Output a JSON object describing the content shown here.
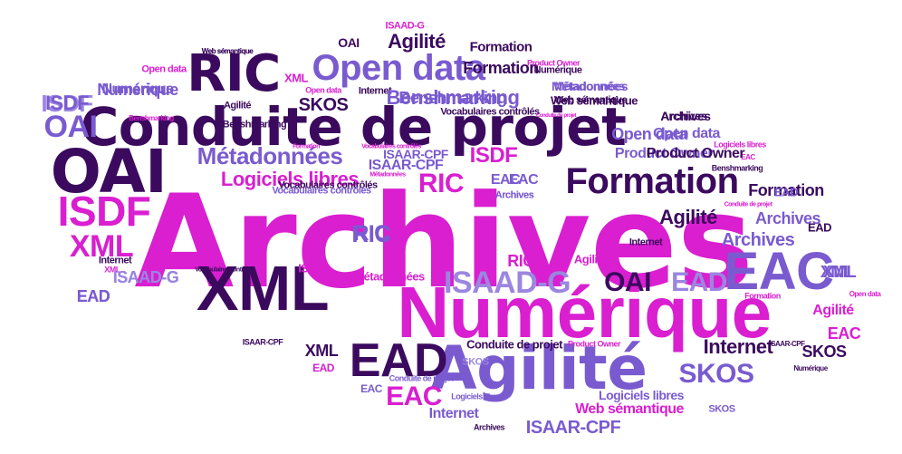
{
  "palette": {
    "magenta": "#d91fd0",
    "dark_purple": "#3b0a5e",
    "medium_purple": "#7a5bcf",
    "light_purple": "#9b86e0"
  },
  "words": [
    {
      "text": "Archives",
      "color": "magenta",
      "size": 142
    },
    {
      "text": "Conduite de projet",
      "color": "dark_purple",
      "size": 58
    },
    {
      "text": "Numérique",
      "color": "magenta",
      "size": 80
    },
    {
      "text": "XML",
      "color": "dark_purple",
      "size": 70
    },
    {
      "text": "Agilité",
      "color": "medium_purple",
      "size": 66
    },
    {
      "text": "OAI",
      "color": "dark_purple",
      "size": 66
    },
    {
      "text": "RIC",
      "color": "dark_purple",
      "size": 56
    },
    {
      "text": "Open data",
      "color": "medium_purple",
      "size": 40
    },
    {
      "text": "Formation",
      "color": "dark_purple",
      "size": 40
    },
    {
      "text": "EAC",
      "color": "medium_purple",
      "size": 58
    },
    {
      "text": "EAD",
      "color": "dark_purple",
      "size": 52
    },
    {
      "text": "ISDF",
      "color": "magenta",
      "size": 46
    },
    {
      "text": "XML",
      "color": "magenta",
      "size": 34
    },
    {
      "text": "ISAAD-G",
      "color": "light_purple",
      "size": 34
    },
    {
      "text": "OAI",
      "color": "dark_purple",
      "size": 30
    },
    {
      "text": "EAD",
      "color": "light_purple",
      "size": 30
    },
    {
      "text": "Métadonnées",
      "color": "medium_purple",
      "size": 26
    },
    {
      "text": "RIC",
      "color": "magenta",
      "size": 30
    },
    {
      "text": "Logiciels libres",
      "color": "magenta",
      "size": 22
    },
    {
      "text": "ISDF",
      "color": "magenta",
      "size": 24
    },
    {
      "text": "SKOS",
      "color": "medium_purple",
      "size": 30
    },
    {
      "text": "Internet",
      "color": "dark_purple",
      "size": 22
    },
    {
      "text": "EAC",
      "color": "magenta",
      "size": 30
    },
    {
      "text": "OAI",
      "color": "medium_purple",
      "size": 34
    },
    {
      "text": "ISDF",
      "color": "light_purple",
      "size": 26
    },
    {
      "text": "RIC",
      "color": "medium_purple",
      "size": 24
    },
    {
      "text": "Benshmarking",
      "color": "medium_purple",
      "size": 18
    },
    {
      "text": "Numérique",
      "color": "medium_purple",
      "size": 16
    },
    {
      "text": "SKOS",
      "color": "dark_purple",
      "size": 20
    },
    {
      "text": "Agilité",
      "color": "dark_purple",
      "size": 22
    },
    {
      "text": "Formation",
      "color": "dark_purple",
      "size": 18
    },
    {
      "text": "Archives",
      "color": "medium_purple",
      "size": 20
    },
    {
      "text": "Open data",
      "color": "medium_purple",
      "size": 18
    },
    {
      "text": "Product Owner",
      "color": "medium_purple",
      "size": 16
    },
    {
      "text": "Métadonnées",
      "color": "medium_purple",
      "size": 14
    },
    {
      "text": "Web sémantique",
      "color": "dark_purple",
      "size": 13
    },
    {
      "text": "Vocabulaires contrôlés",
      "color": "dark_purple",
      "size": 11
    },
    {
      "text": "Archives",
      "color": "dark_purple",
      "size": 14
    },
    {
      "text": "ISAAR-CPF",
      "color": "medium_purple",
      "size": 14
    },
    {
      "text": "EAC",
      "color": "medium_purple",
      "size": 16
    },
    {
      "text": "Archives",
      "color": "light_purple",
      "size": 11
    },
    {
      "text": "Internet",
      "color": "dark_purple",
      "size": 11
    },
    {
      "text": "XML",
      "color": "medium_purple",
      "size": 18
    },
    {
      "text": "Agilité",
      "color": "magenta",
      "size": 13
    },
    {
      "text": "RIC",
      "color": "magenta",
      "size": 18
    },
    {
      "text": "ISAAD-G",
      "color": "medium_purple",
      "size": 18
    },
    {
      "text": "EAD",
      "color": "medium_purple",
      "size": 18
    },
    {
      "text": "Web sémantique",
      "color": "dark_purple",
      "size": 8
    },
    {
      "text": "Conduite de projet",
      "color": "dark_purple",
      "size": 13
    },
    {
      "text": "ISAAR-CPF",
      "color": "dark_purple",
      "size": 9
    },
    {
      "text": "XML",
      "color": "dark_purple",
      "size": 18
    },
    {
      "text": "EAD",
      "color": "magenta",
      "size": 12
    },
    {
      "text": "EAC",
      "color": "medium_purple",
      "size": 12
    },
    {
      "text": "Logiciels libres",
      "color": "medium_purple",
      "size": 9
    },
    {
      "text": "Internet",
      "color": "medium_purple",
      "size": 16
    },
    {
      "text": "Archives",
      "color": "dark_purple",
      "size": 9
    },
    {
      "text": "ISAAR-CPF",
      "color": "medium_purple",
      "size": 20
    },
    {
      "text": "Web sémantique",
      "color": "magenta",
      "size": 16
    },
    {
      "text": "Logiciels libres",
      "color": "medium_purple",
      "size": 14
    },
    {
      "text": "SKOS",
      "color": "medium_purple",
      "size": 11
    },
    {
      "text": "Conduite de projet",
      "color": "medium_purple",
      "size": 9
    },
    {
      "text": "SKOS",
      "color": "light_purple",
      "size": 11
    },
    {
      "text": "Product Owner",
      "color": "magenta",
      "size": 9
    },
    {
      "text": "ISAAR-CPF",
      "color": "dark_purple",
      "size": 8
    },
    {
      "text": "SKOS",
      "color": "dark_purple",
      "size": 18
    },
    {
      "text": "Numérique",
      "color": "dark_purple",
      "size": 8
    },
    {
      "text": "EAC",
      "color": "magenta",
      "size": 18
    },
    {
      "text": "Agilité",
      "color": "magenta",
      "size": 16
    },
    {
      "text": "Formation",
      "color": "magenta",
      "size": 9
    },
    {
      "text": "Open data",
      "color": "magenta",
      "size": 8
    },
    {
      "text": "XML",
      "color": "medium_purple",
      "size": 18
    },
    {
      "text": "EAD",
      "color": "dark_purple",
      "size": 13
    },
    {
      "text": "Archives",
      "color": "medium_purple",
      "size": 18
    },
    {
      "text": "Formation",
      "color": "dark_purple",
      "size": 18
    },
    {
      "text": "Conduite de projet",
      "color": "magenta",
      "size": 7
    },
    {
      "text": "EAD",
      "color": "medium_purple",
      "size": 13
    },
    {
      "text": "Benshmarking",
      "color": "dark_purple",
      "size": 9
    },
    {
      "text": "EAC",
      "color": "magenta",
      "size": 8
    },
    {
      "text": "Logiciels libres",
      "color": "magenta",
      "size": 9
    },
    {
      "text": "Product Owner",
      "color": "dark_purple",
      "size": 16
    },
    {
      "text": "Open data",
      "color": "medium_purple",
      "size": 16
    },
    {
      "text": "Archives",
      "color": "dark_purple",
      "size": 13
    },
    {
      "text": "Conduite de projet",
      "color": "magenta",
      "size": 6
    },
    {
      "text": "Web sémantique",
      "color": "dark_purple",
      "size": 11
    },
    {
      "text": "Métadonnées",
      "color": "medium_purple",
      "size": 13
    },
    {
      "text": "Numérique",
      "color": "dark_purple",
      "size": 11
    },
    {
      "text": "Product Owner",
      "color": "magenta",
      "size": 9
    },
    {
      "text": "Formation",
      "color": "dark_purple",
      "size": 15
    },
    {
      "text": "Agilité",
      "color": "dark_purple",
      "size": 22
    },
    {
      "text": "ISAAD-G",
      "color": "magenta",
      "size": 11
    },
    {
      "text": "OAI",
      "color": "dark_purple",
      "size": 14
    },
    {
      "text": "Web sémantique",
      "color": "dark_purple",
      "size": 8
    },
    {
      "text": "Open data",
      "color": "magenta",
      "size": 11
    },
    {
      "text": "XML",
      "color": "magenta",
      "size": 13
    },
    {
      "text": "Open data",
      "color": "magenta",
      "size": 9
    },
    {
      "text": "Internet",
      "color": "dark_purple",
      "size": 11
    },
    {
      "text": "Benshmarking",
      "color": "medium_purple",
      "size": 22
    },
    {
      "text": "Benshmarking",
      "color": "magenta",
      "size": 8
    },
    {
      "text": "Numérique",
      "color": "medium_purple",
      "size": 18
    },
    {
      "text": "ISDF",
      "color": "medium_purple",
      "size": 22
    },
    {
      "text": "Benshmarking",
      "color": "dark_purple",
      "size": 11
    },
    {
      "text": "Agilité",
      "color": "dark_purple",
      "size": 11
    },
    {
      "text": "Vocabulaires contrôlés",
      "color": "dark_purple",
      "size": 11
    },
    {
      "text": "Formation",
      "color": "magenta",
      "size": 7
    },
    {
      "text": "ISAAR-CPF",
      "color": "medium_purple",
      "size": 16
    },
    {
      "text": "Métadonnées",
      "color": "magenta",
      "size": 7
    },
    {
      "text": "Vocabulaires contrôlés",
      "color": "magenta",
      "size": 7
    },
    {
      "text": "RIC",
      "color": "medium_purple",
      "size": 26
    },
    {
      "text": "EAC",
      "color": "medium_purple",
      "size": 16
    },
    {
      "text": "Archives",
      "color": "medium_purple",
      "size": 11
    },
    {
      "text": "Vocabulaires contrôlés",
      "color": "medium_purple",
      "size": 11
    },
    {
      "text": "Internet",
      "color": "dark_purple",
      "size": 11
    },
    {
      "text": "XML",
      "color": "magenta",
      "size": 9
    },
    {
      "text": "ISAAD-G",
      "color": "light_purple",
      "size": 18
    },
    {
      "text": "EAD",
      "color": "medium_purple",
      "size": 18
    },
    {
      "text": "Vocabulaires contrôlés",
      "color": "dark_purple",
      "size": 7
    },
    {
      "text": "ISDF",
      "color": "magenta",
      "size": 13
    },
    {
      "text": "Métadonnées",
      "color": "magenta",
      "size": 13
    }
  ]
}
